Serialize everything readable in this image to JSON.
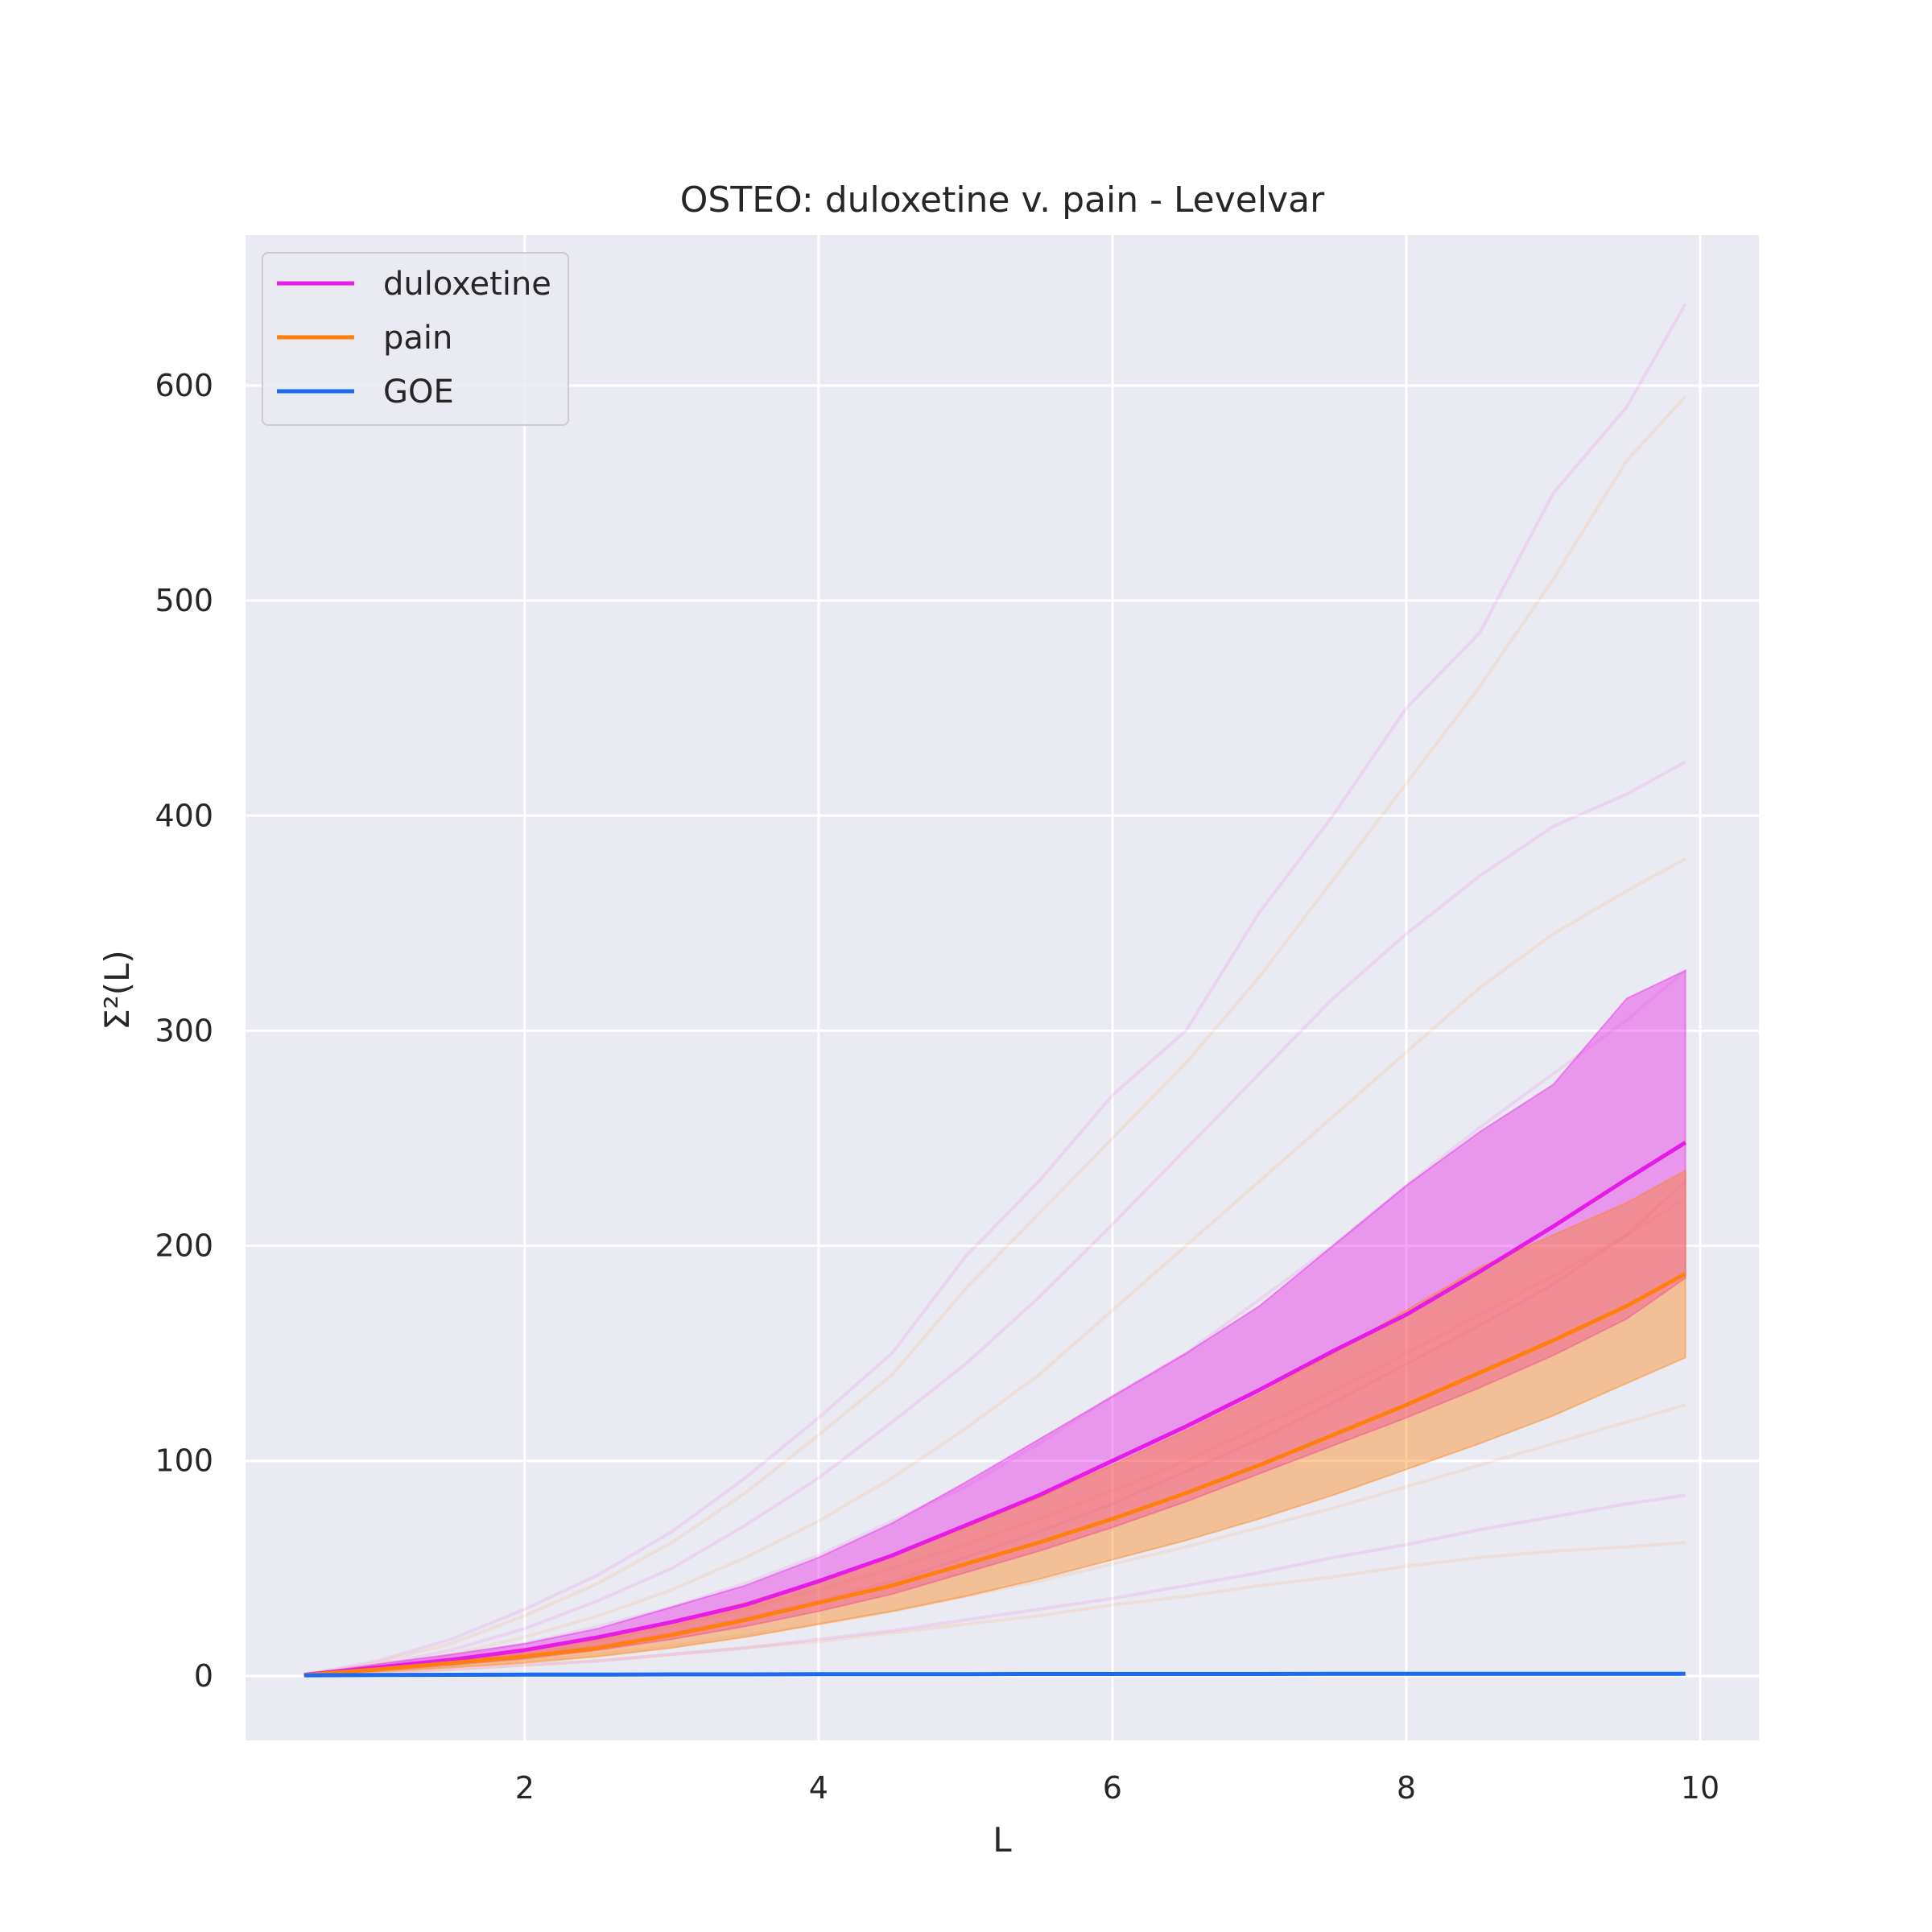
{
  "chart_data": {
    "type": "line",
    "title": "OSTEO: duloxetine v. pain - Levelvar",
    "xlabel": "L",
    "ylabel": "Σ²(L)",
    "xlim": [
      0.1,
      10.4
    ],
    "ylim": [
      -30,
      670
    ],
    "xticks": [
      2,
      4,
      6,
      8,
      10
    ],
    "yticks": [
      0,
      100,
      200,
      300,
      400,
      500,
      600
    ],
    "grid": true,
    "legend_position": "top-left",
    "background": "#eaeaf2",
    "x": [
      0.5,
      1.0,
      1.5,
      2.0,
      2.5,
      3.0,
      3.5,
      4.0,
      4.5,
      5.0,
      5.5,
      6.0,
      6.5,
      7.0,
      7.5,
      8.0,
      8.5,
      9.0,
      9.5,
      9.9
    ],
    "series": [
      {
        "name": "duloxetine",
        "color": "#e61be6",
        "values": [
          0.5,
          4,
          7.5,
          12,
          18,
          25,
          33,
          44,
          56,
          70,
          84,
          100,
          116,
          133,
          151,
          168,
          188,
          209,
          231,
          248
        ],
        "band_lower": [
          0.4,
          2.5,
          5,
          8,
          12,
          17,
          23,
          30,
          38,
          48,
          58,
          69,
          81,
          94,
          107,
          120,
          134,
          149,
          166,
          185
        ],
        "band_upper": [
          0.6,
          5.5,
          10,
          15,
          22,
          32,
          42,
          55,
          71,
          90,
          110,
          130,
          150,
          172,
          200,
          228,
          253,
          275,
          315,
          328
        ]
      },
      {
        "name": "pain",
        "color": "#ff7f0e",
        "values": [
          0.4,
          3,
          6,
          9,
          13,
          19,
          26,
          34,
          42,
          52,
          62,
          73,
          85,
          98,
          112,
          126,
          141,
          156,
          172,
          187
        ],
        "band_lower": [
          0.3,
          2,
          4,
          6,
          9,
          13,
          18,
          24,
          30,
          37,
          45,
          54,
          63,
          73,
          84,
          96,
          108,
          121,
          136,
          148
        ],
        "band_upper": [
          0.5,
          4,
          8,
          12,
          17,
          25,
          34,
          44,
          56,
          69,
          83,
          98,
          114,
          131,
          150,
          170,
          190,
          205,
          220,
          235
        ]
      },
      {
        "name": "GOE",
        "color": "#1a6bf0",
        "values": [
          0.3,
          0.4,
          0.5,
          0.6,
          0.6,
          0.7,
          0.7,
          0.8,
          0.8,
          0.8,
          0.9,
          0.9,
          0.9,
          0.9,
          1.0,
          1.0,
          1.0,
          1.0,
          1.0,
          1.0
        ]
      }
    ],
    "individual_traces": {
      "duloxetine": [
        [
          0.6,
          7,
          17,
          31,
          47,
          67,
          92,
          120,
          150,
          195,
          230,
          270,
          300,
          355,
          400,
          450,
          485,
          550,
          590,
          638
        ],
        [
          0.5,
          5,
          12,
          22,
          35,
          50,
          70,
          92,
          118,
          145,
          176,
          210,
          245,
          280,
          315,
          345,
          372,
          395,
          410,
          425
        ],
        [
          0.5,
          4,
          9,
          15,
          23,
          32,
          43,
          56,
          72,
          88,
          108,
          130,
          150,
          175,
          200,
          228,
          255,
          280,
          305,
          328
        ],
        [
          0.4,
          3,
          6,
          10,
          14,
          20,
          27,
          35,
          44,
          55,
          67,
          80,
          95,
          110,
          127,
          145,
          163,
          182,
          205,
          230
        ],
        [
          0.3,
          1.5,
          3,
          5,
          7,
          10,
          13,
          17,
          21,
          26,
          31,
          36,
          42,
          48,
          55,
          61,
          68,
          74,
          80,
          84
        ]
      ],
      "pain": [
        [
          0.6,
          6,
          15,
          28,
          43,
          62,
          85,
          112,
          140,
          180,
          215,
          250,
          285,
          325,
          370,
          415,
          460,
          510,
          565,
          595
        ],
        [
          0.5,
          4,
          10,
          18,
          28,
          40,
          55,
          72,
          92,
          115,
          140,
          170,
          200,
          230,
          260,
          290,
          320,
          345,
          365,
          380
        ],
        [
          0.4,
          3,
          6,
          11,
          16,
          23,
          31,
          40,
          50,
          61,
          73,
          86,
          100,
          116,
          132,
          150,
          168,
          186,
          205,
          222
        ],
        [
          0.3,
          2,
          4,
          7,
          10,
          14,
          19,
          24,
          30,
          37,
          44,
          52,
          60,
          69,
          78,
          88,
          98,
          108,
          118,
          126
        ],
        [
          0.3,
          1.5,
          3,
          5,
          7,
          10,
          13,
          16,
          20,
          24,
          28,
          33,
          37,
          42,
          46,
          51,
          55,
          58,
          60,
          62
        ]
      ]
    }
  }
}
